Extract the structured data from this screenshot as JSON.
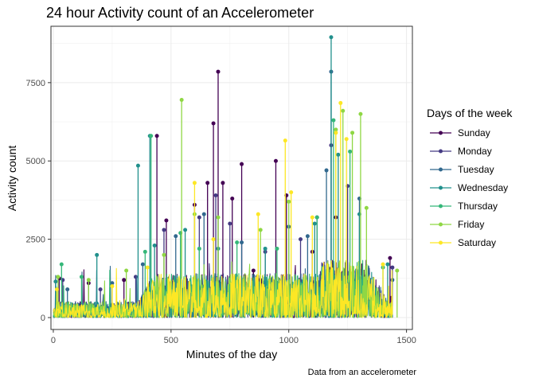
{
  "chart_data": {
    "type": "line",
    "title": "24 hour Activity count of an Accelerometer",
    "xlabel": "Minutes of the day",
    "ylabel": "Activity count",
    "caption": "Data from an accelerometer",
    "xlim": [
      -10,
      1525
    ],
    "ylim": [
      -380,
      9300
    ],
    "x_ticks": [
      0,
      500,
      1000,
      1500
    ],
    "y_ticks": [
      0,
      2500,
      5000,
      7500
    ],
    "x_tick_labels": [
      "0",
      "500",
      "1000",
      "1500"
    ],
    "y_tick_labels": [
      "0",
      "2500",
      "5000",
      "7500"
    ],
    "grid": true,
    "legend": {
      "title": "Days of the week",
      "position": "right"
    },
    "series": [
      {
        "name": "Sunday",
        "color": "#440154",
        "peaks": [
          [
            25,
            1250
          ],
          [
            150,
            1100
          ],
          [
            300,
            1200
          ],
          [
            440,
            5800
          ],
          [
            480,
            3100
          ],
          [
            600,
            3600
          ],
          [
            655,
            4300
          ],
          [
            680,
            6200
          ],
          [
            700,
            7850
          ],
          [
            720,
            4300
          ],
          [
            760,
            3800
          ],
          [
            800,
            4900
          ],
          [
            850,
            1500
          ],
          [
            945,
            5000
          ],
          [
            990,
            3900
          ],
          [
            1100,
            2100
          ],
          [
            1200,
            3200
          ],
          [
            1430,
            1900
          ]
        ]
      },
      {
        "name": "Monday",
        "color": "#443A83",
        "peaks": [
          [
            40,
            1200
          ],
          [
            200,
            900
          ],
          [
            350,
            1300
          ],
          [
            470,
            2800
          ],
          [
            620,
            3200
          ],
          [
            690,
            3900
          ],
          [
            750,
            3000
          ],
          [
            900,
            2100
          ],
          [
            1050,
            2500
          ],
          [
            1120,
            3200
          ],
          [
            1180,
            5500
          ],
          [
            1250,
            4200
          ],
          [
            1440,
            1600
          ]
        ]
      },
      {
        "name": "Tuesday",
        "color": "#31688E",
        "peaks": [
          [
            60,
            900
          ],
          [
            250,
            1100
          ],
          [
            380,
            1700
          ],
          [
            520,
            2600
          ],
          [
            640,
            3300
          ],
          [
            800,
            2400
          ],
          [
            1000,
            2900
          ],
          [
            1080,
            2600
          ],
          [
            1160,
            4700
          ],
          [
            1180,
            7850
          ],
          [
            1300,
            3800
          ],
          [
            1440,
            1200
          ]
        ]
      },
      {
        "name": "Wednesday",
        "color": "#21908C",
        "peaks": [
          [
            10,
            1150
          ],
          [
            185,
            2000
          ],
          [
            360,
            4850
          ],
          [
            410,
            5800
          ],
          [
            430,
            2300
          ],
          [
            560,
            2800
          ],
          [
            700,
            2200
          ],
          [
            900,
            2200
          ],
          [
            1110,
            3000
          ],
          [
            1180,
            8950
          ],
          [
            1210,
            5200
          ],
          [
            1300,
            3300
          ],
          [
            1420,
            1700
          ]
        ]
      },
      {
        "name": "Thursday",
        "color": "#35B779",
        "peaks": [
          [
            35,
            1700
          ],
          [
            120,
            1300
          ],
          [
            390,
            2100
          ],
          [
            415,
            5800
          ],
          [
            540,
            2700
          ],
          [
            620,
            2200
          ],
          [
            780,
            2400
          ],
          [
            950,
            2200
          ],
          [
            1120,
            3200
          ],
          [
            1190,
            6300
          ],
          [
            1260,
            5300
          ],
          [
            1400,
            1600
          ]
        ]
      },
      {
        "name": "Friday",
        "color": "#8FD744",
        "peaks": [
          [
            20,
            1300
          ],
          [
            150,
            1200
          ],
          [
            310,
            1500
          ],
          [
            470,
            2000
          ],
          [
            545,
            6950
          ],
          [
            600,
            3300
          ],
          [
            700,
            3200
          ],
          [
            880,
            2800
          ],
          [
            1000,
            3700
          ],
          [
            1200,
            6000
          ],
          [
            1230,
            6600
          ],
          [
            1270,
            5900
          ],
          [
            1305,
            6500
          ],
          [
            1330,
            3500
          ],
          [
            1460,
            1500
          ]
        ]
      },
      {
        "name": "Saturday",
        "color": "#FDE725",
        "peaks": [
          [
            15,
            900
          ],
          [
            250,
            1000
          ],
          [
            400,
            1600
          ],
          [
            600,
            4300
          ],
          [
            680,
            2500
          ],
          [
            870,
            3300
          ],
          [
            985,
            5650
          ],
          [
            1010,
            4000
          ],
          [
            1100,
            3200
          ],
          [
            1200,
            5900
          ],
          [
            1220,
            6850
          ],
          [
            1245,
            5700
          ],
          [
            1400,
            1700
          ]
        ]
      }
    ]
  }
}
